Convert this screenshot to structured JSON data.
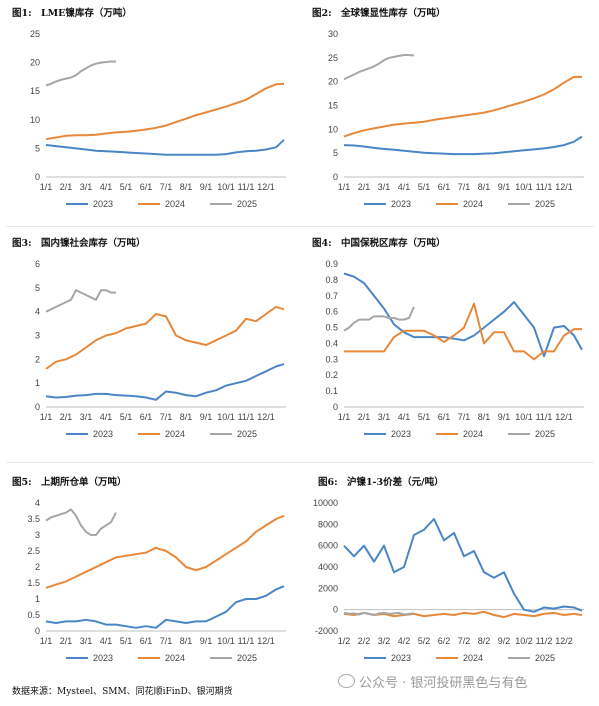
{
  "source": "数据来源：Mysteel、SMM、同花顺iFinD、银河期货",
  "watermark": "公众号 · 银河投研黑色与有色",
  "colors": {
    "2023": "#4a86c5",
    "2024": "#e8883a",
    "2025": "#a6a6a6"
  },
  "chart_data": [
    {
      "type": "line",
      "title_no": "图1:",
      "title": "LME镍库存（万吨）",
      "x_tick_labels": [
        "1/1",
        "2/1",
        "3/1",
        "4/1",
        "5/1",
        "6/1",
        "7/1",
        "8/1",
        "9/1",
        "10/1",
        "11/1",
        "12/1"
      ],
      "ylim": [
        0,
        25
      ],
      "yticks": [
        "0",
        "5",
        "10",
        "15",
        "20",
        "25"
      ],
      "legend": "bottom-center",
      "series": [
        {
          "name": "2023",
          "x": [
            0,
            0.5,
            1,
            1.5,
            2,
            2.5,
            3,
            3.5,
            4,
            4.5,
            5,
            5.5,
            6,
            6.5,
            7,
            7.5,
            8,
            8.5,
            9,
            9.5,
            10,
            10.5,
            11,
            11.5,
            11.9
          ],
          "values": [
            5.6,
            5.4,
            5.2,
            5.0,
            4.8,
            4.6,
            4.5,
            4.4,
            4.3,
            4.2,
            4.1,
            4.0,
            3.9,
            3.9,
            3.9,
            3.9,
            3.9,
            3.9,
            4.0,
            4.3,
            4.5,
            4.6,
            4.8,
            5.2,
            6.5
          ]
        },
        {
          "name": "2024",
          "x": [
            0,
            0.5,
            1,
            1.5,
            2,
            2.5,
            3,
            3.5,
            4,
            4.5,
            5,
            5.5,
            6,
            6.5,
            7,
            7.5,
            8,
            8.5,
            9,
            9.5,
            10,
            10.5,
            11,
            11.5,
            11.9
          ],
          "values": [
            6.6,
            6.9,
            7.2,
            7.3,
            7.3,
            7.4,
            7.6,
            7.8,
            7.9,
            8.1,
            8.3,
            8.6,
            9.0,
            9.6,
            10.2,
            10.8,
            11.3,
            11.8,
            12.3,
            12.9,
            13.5,
            14.5,
            15.5,
            16.2,
            16.3
          ]
        },
        {
          "name": "2025",
          "x": [
            0,
            0.25,
            0.5,
            0.75,
            1,
            1.25,
            1.5,
            1.75,
            2,
            2.25,
            2.5,
            2.75,
            3,
            3.25,
            3.5
          ],
          "values": [
            16.0,
            16.3,
            16.7,
            17.0,
            17.2,
            17.4,
            17.8,
            18.5,
            19.0,
            19.5,
            19.8,
            20.0,
            20.1,
            20.2,
            20.2
          ]
        }
      ]
    },
    {
      "type": "line",
      "title_no": "图2:",
      "title": "全球镍显性库存（万吨）",
      "x_tick_labels": [
        "1/1",
        "2/1",
        "3/1",
        "4/1",
        "5/1",
        "6/1",
        "7/1",
        "8/1",
        "9/1",
        "10/1",
        "11/1",
        "12/1"
      ],
      "ylim": [
        0,
        30
      ],
      "yticks": [
        "0",
        "5",
        "10",
        "15",
        "20",
        "25",
        "30"
      ],
      "legend": "bottom-center",
      "series": [
        {
          "name": "2023",
          "x": [
            0,
            0.5,
            1,
            1.5,
            2,
            2.5,
            3,
            3.5,
            4,
            4.5,
            5,
            5.5,
            6,
            6.5,
            7,
            7.5,
            8,
            8.5,
            9,
            9.5,
            10,
            10.5,
            11,
            11.5,
            11.9
          ],
          "values": [
            6.7,
            6.6,
            6.4,
            6.1,
            5.9,
            5.7,
            5.5,
            5.3,
            5.1,
            5.0,
            4.9,
            4.8,
            4.8,
            4.8,
            4.9,
            5.0,
            5.2,
            5.4,
            5.6,
            5.8,
            6.0,
            6.3,
            6.7,
            7.4,
            8.5
          ]
        },
        {
          "name": "2024",
          "x": [
            0,
            0.5,
            1,
            1.5,
            2,
            2.5,
            3,
            3.5,
            4,
            4.5,
            5,
            5.5,
            6,
            6.5,
            7,
            7.5,
            8,
            8.5,
            9,
            9.5,
            10,
            10.5,
            11,
            11.5,
            11.9
          ],
          "values": [
            8.5,
            9.2,
            9.8,
            10.2,
            10.6,
            11.0,
            11.2,
            11.4,
            11.6,
            12.0,
            12.3,
            12.6,
            12.9,
            13.2,
            13.5,
            14.0,
            14.6,
            15.2,
            15.8,
            16.5,
            17.3,
            18.4,
            19.8,
            21.0,
            21.0
          ]
        },
        {
          "name": "2025",
          "x": [
            0,
            0.25,
            0.5,
            0.75,
            1,
            1.25,
            1.5,
            1.75,
            2,
            2.25,
            2.5,
            2.75,
            3,
            3.25,
            3.5
          ],
          "values": [
            20.5,
            21.0,
            21.5,
            22.0,
            22.4,
            22.8,
            23.2,
            23.8,
            24.5,
            25.0,
            25.2,
            25.4,
            25.6,
            25.6,
            25.5
          ]
        }
      ]
    },
    {
      "type": "line",
      "title_no": "图3:",
      "title": "国内镍社会库存（万吨）",
      "x_tick_labels": [
        "1/1",
        "2/1",
        "3/1",
        "4/1",
        "5/1",
        "6/1",
        "7/1",
        "8/1",
        "9/1",
        "10/1",
        "11/1",
        "12/1"
      ],
      "ylim": [
        0,
        6
      ],
      "yticks": [
        "0",
        "1",
        "2",
        "3",
        "4",
        "5",
        "6"
      ],
      "legend": "bottom-center",
      "series": [
        {
          "name": "2023",
          "x": [
            0,
            0.5,
            1,
            1.5,
            2,
            2.5,
            3,
            3.5,
            4,
            4.5,
            5,
            5.5,
            6,
            6.5,
            7,
            7.5,
            8,
            8.5,
            9,
            9.5,
            10,
            10.5,
            11,
            11.5,
            11.9
          ],
          "values": [
            0.45,
            0.4,
            0.42,
            0.48,
            0.5,
            0.55,
            0.55,
            0.5,
            0.48,
            0.45,
            0.4,
            0.3,
            0.65,
            0.6,
            0.5,
            0.45,
            0.6,
            0.7,
            0.9,
            1.0,
            1.1,
            1.3,
            1.5,
            1.7,
            1.8
          ]
        },
        {
          "name": "2024",
          "x": [
            0,
            0.5,
            1,
            1.5,
            2,
            2.5,
            3,
            3.5,
            4,
            4.5,
            5,
            5.5,
            6,
            6.5,
            7,
            7.5,
            8,
            8.5,
            9,
            9.5,
            10,
            10.5,
            11,
            11.5,
            11.9
          ],
          "values": [
            1.6,
            1.9,
            2.0,
            2.2,
            2.5,
            2.8,
            3.0,
            3.1,
            3.3,
            3.4,
            3.5,
            3.9,
            3.8,
            3.0,
            2.8,
            2.7,
            2.6,
            2.8,
            3.0,
            3.2,
            3.7,
            3.6,
            3.9,
            4.2,
            4.1
          ]
        },
        {
          "name": "2025",
          "x": [
            0,
            0.25,
            0.5,
            0.75,
            1,
            1.25,
            1.5,
            1.75,
            2,
            2.25,
            2.5,
            2.75,
            3,
            3.25,
            3.5
          ],
          "values": [
            4.0,
            4.1,
            4.2,
            4.3,
            4.4,
            4.5,
            4.9,
            4.8,
            4.7,
            4.6,
            4.5,
            4.9,
            4.9,
            4.8,
            4.8
          ]
        }
      ]
    },
    {
      "type": "line",
      "title_no": "图4:",
      "title": "中国保税区库存（万吨）",
      "x_tick_labels": [
        "1/1",
        "2/1",
        "3/1",
        "4/1",
        "5/1",
        "6/1",
        "7/1",
        "8/1",
        "9/1",
        "10/1",
        "11/1",
        "12/1"
      ],
      "ylim": [
        0,
        0.9
      ],
      "yticks": [
        "0",
        "0.1",
        "0.2",
        "0.3",
        "0.4",
        "0.5",
        "0.6",
        "0.7",
        "0.8",
        "0.9"
      ],
      "legend": "bottom-center",
      "series": [
        {
          "name": "2023",
          "x": [
            0,
            0.5,
            1,
            1.5,
            2,
            2.5,
            3,
            3.5,
            4,
            4.5,
            5,
            5.5,
            6,
            6.5,
            7,
            7.5,
            8,
            8.5,
            9,
            9.5,
            10,
            10.5,
            11,
            11.5,
            11.9
          ],
          "values": [
            0.84,
            0.82,
            0.78,
            0.7,
            0.62,
            0.52,
            0.47,
            0.44,
            0.44,
            0.44,
            0.44,
            0.43,
            0.42,
            0.45,
            0.5,
            0.55,
            0.6,
            0.66,
            0.58,
            0.5,
            0.32,
            0.5,
            0.51,
            0.45,
            0.36
          ]
        },
        {
          "name": "2024",
          "x": [
            0,
            0.5,
            1,
            1.5,
            2,
            2.5,
            3,
            3.5,
            4,
            4.5,
            5,
            5.5,
            6,
            6.5,
            7,
            7.5,
            8,
            8.5,
            9,
            9.5,
            10,
            10.5,
            11,
            11.5,
            11.9
          ],
          "values": [
            0.35,
            0.35,
            0.35,
            0.35,
            0.35,
            0.44,
            0.48,
            0.48,
            0.48,
            0.45,
            0.41,
            0.45,
            0.5,
            0.65,
            0.4,
            0.47,
            0.47,
            0.35,
            0.35,
            0.3,
            0.35,
            0.35,
            0.45,
            0.49,
            0.49
          ]
        },
        {
          "name": "2025",
          "x": [
            0,
            0.25,
            0.5,
            0.75,
            1,
            1.25,
            1.5,
            1.75,
            2,
            2.25,
            2.5,
            2.75,
            3,
            3.25,
            3.5
          ],
          "values": [
            0.48,
            0.5,
            0.53,
            0.55,
            0.55,
            0.55,
            0.57,
            0.57,
            0.57,
            0.56,
            0.56,
            0.55,
            0.55,
            0.56,
            0.63
          ]
        }
      ]
    },
    {
      "type": "line",
      "title_no": "图5:",
      "title": "上期所仓单（万吨）",
      "x_tick_labels": [
        "1/1",
        "2/1",
        "3/1",
        "4/1",
        "5/1",
        "6/1",
        "7/1",
        "8/1",
        "9/1",
        "10/1",
        "11/1",
        "12/1"
      ],
      "ylim": [
        0,
        4
      ],
      "yticks": [
        "0",
        "0.5",
        "1",
        "1.5",
        "2",
        "2.5",
        "3",
        "3.5",
        "4"
      ],
      "legend": "bottom-center",
      "series": [
        {
          "name": "2023",
          "x": [
            0,
            0.5,
            1,
            1.5,
            2,
            2.5,
            3,
            3.5,
            4,
            4.5,
            5,
            5.5,
            6,
            6.5,
            7,
            7.5,
            8,
            8.5,
            9,
            9.5,
            10,
            10.5,
            11,
            11.5,
            11.9
          ],
          "values": [
            0.3,
            0.25,
            0.3,
            0.3,
            0.35,
            0.3,
            0.2,
            0.2,
            0.15,
            0.1,
            0.15,
            0.1,
            0.35,
            0.3,
            0.25,
            0.3,
            0.3,
            0.45,
            0.6,
            0.9,
            1.0,
            1.0,
            1.1,
            1.3,
            1.4
          ]
        },
        {
          "name": "2024",
          "x": [
            0,
            0.5,
            1,
            1.5,
            2,
            2.5,
            3,
            3.5,
            4,
            4.5,
            5,
            5.5,
            6,
            6.5,
            7,
            7.5,
            8,
            8.5,
            9,
            9.5,
            10,
            10.5,
            11,
            11.5,
            11.9
          ],
          "values": [
            1.35,
            1.45,
            1.55,
            1.7,
            1.85,
            2.0,
            2.15,
            2.3,
            2.35,
            2.4,
            2.45,
            2.6,
            2.5,
            2.3,
            2.0,
            1.9,
            2.0,
            2.2,
            2.4,
            2.6,
            2.8,
            3.1,
            3.3,
            3.5,
            3.6
          ]
        },
        {
          "name": "2025",
          "x": [
            0,
            0.25,
            0.5,
            0.75,
            1,
            1.25,
            1.5,
            1.75,
            2,
            2.25,
            2.5,
            2.75,
            3,
            3.25,
            3.5
          ],
          "values": [
            3.45,
            3.55,
            3.6,
            3.65,
            3.7,
            3.8,
            3.6,
            3.3,
            3.1,
            3.0,
            3.0,
            3.2,
            3.3,
            3.4,
            3.7
          ]
        }
      ]
    },
    {
      "type": "line",
      "title_no": "图6:",
      "title": "沪镍1-3价差（元/吨）",
      "x_tick_labels": [
        "1/2",
        "2/2",
        "3/2",
        "4/2",
        "5/2",
        "6/2",
        "7/2",
        "8/2",
        "9/2",
        "10/2",
        "11/2",
        "12/2"
      ],
      "ylim": [
        -2000,
        10000
      ],
      "yticks": [
        "-2000",
        "0",
        "2000",
        "4000",
        "6000",
        "8000",
        "10000"
      ],
      "legend": "bottom-center",
      "series": [
        {
          "name": "2023",
          "x": [
            0,
            0.5,
            1,
            1.5,
            2,
            2.5,
            3,
            3.5,
            4,
            4.5,
            5,
            5.5,
            6,
            6.5,
            7,
            7.5,
            8,
            8.5,
            9,
            9.5,
            10,
            10.5,
            11,
            11.5,
            11.9
          ],
          "values": [
            6000,
            5000,
            6000,
            4500,
            6000,
            3500,
            4000,
            7000,
            7500,
            8500,
            6500,
            7200,
            5000,
            5500,
            3500,
            3000,
            3500,
            1500,
            0,
            -200,
            200,
            100,
            300,
            200,
            -100
          ]
        },
        {
          "name": "2024",
          "x": [
            0,
            0.5,
            1,
            1.5,
            2,
            2.5,
            3,
            3.5,
            4,
            4.5,
            5,
            5.5,
            6,
            6.5,
            7,
            7.5,
            8,
            8.5,
            9,
            9.5,
            10,
            10.5,
            11,
            11.5,
            11.9
          ],
          "values": [
            -400,
            -500,
            -300,
            -500,
            -400,
            -600,
            -500,
            -400,
            -600,
            -500,
            -400,
            -500,
            -300,
            -400,
            -200,
            -500,
            -700,
            -400,
            -500,
            -600,
            -400,
            -300,
            -500,
            -400,
            -500
          ]
        },
        {
          "name": "2025",
          "x": [
            0,
            0.25,
            0.5,
            0.75,
            1,
            1.25,
            1.5,
            1.75,
            2,
            2.25,
            2.5,
            2.75,
            3,
            3.25,
            3.5
          ],
          "values": [
            -300,
            -400,
            -350,
            -450,
            -300,
            -400,
            -500,
            -350,
            -300,
            -400,
            -350,
            -300,
            -450,
            -400,
            -350
          ]
        }
      ]
    }
  ]
}
